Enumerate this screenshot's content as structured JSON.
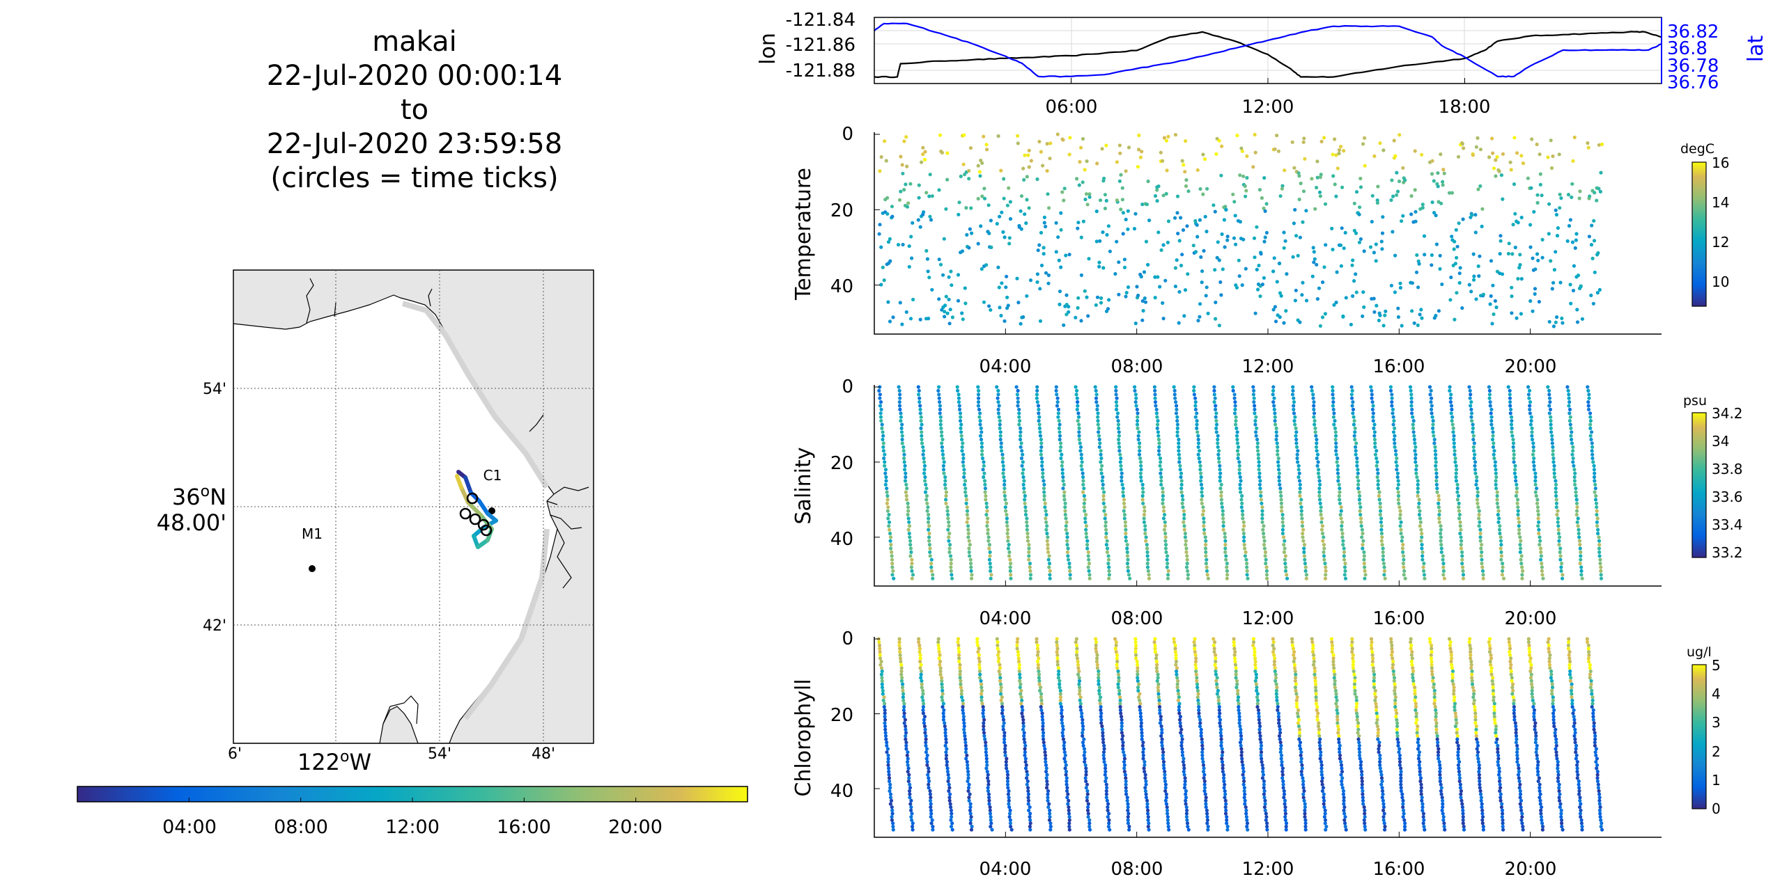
{
  "title": {
    "line1": "makai",
    "line2": "22-Jul-2020 00:00:14",
    "line3": "to",
    "line4": "22-Jul-2020 23:59:58",
    "line5": "(circles = time ticks)"
  },
  "map": {
    "lat_ticks": [
      "54'",
      "36",
      "48.00'",
      "42'"
    ],
    "lat_degree_label": {
      "deg": "36",
      "sup": "o",
      "hemi": "N"
    },
    "lon_ticks": [
      "6'",
      "54'",
      "48'"
    ],
    "lon_degree_label": {
      "deg": "122",
      "sup": "o",
      "hemi": "W"
    },
    "stations": [
      {
        "name": "M1"
      },
      {
        "name": "C1"
      }
    ],
    "colors": {
      "land": "#e6e6e6",
      "water": "#ffffff",
      "coast": "#000000"
    }
  },
  "time_colorbar": {
    "ticks": [
      "04:00",
      "08:00",
      "12:00",
      "16:00",
      "20:00"
    ],
    "colormap": "parula"
  },
  "chart_data": [
    {
      "type": "line",
      "panel": "position",
      "xlabel": "",
      "ylabel_left": "lon",
      "ylabel_right": "lat",
      "xticks": [
        "06:00",
        "12:00",
        "18:00"
      ],
      "yticks_left": [
        "-121.84",
        "-121.86",
        "-121.88"
      ],
      "yticks_right": [
        "36.82",
        "36.8",
        "36.78",
        "36.76"
      ],
      "ylim_left": [
        -121.885,
        -121.835
      ],
      "ylim_right": [
        36.755,
        36.83
      ],
      "xlim_hours": [
        0,
        24
      ],
      "grid": true,
      "series": [
        {
          "name": "lon",
          "color": "#000000",
          "x": [
            0.0,
            0.7,
            0.8,
            2.0,
            3.0,
            4.0,
            5.0,
            6.0,
            7.0,
            8.0,
            9.0,
            10.0,
            11.0,
            12.0,
            12.7,
            13.0,
            14.0,
            15.0,
            16.0,
            17.0,
            18.0,
            18.6,
            19.0,
            20.0,
            21.0,
            22.0,
            23.0,
            23.5,
            24.0
          ],
          "y": [
            -121.88,
            -121.88,
            -121.87,
            -121.868,
            -121.867,
            -121.866,
            -121.865,
            -121.864,
            -121.862,
            -121.86,
            -121.85,
            -121.846,
            -121.853,
            -121.863,
            -121.874,
            -121.88,
            -121.88,
            -121.876,
            -121.872,
            -121.869,
            -121.866,
            -121.86,
            -121.853,
            -121.849,
            -121.848,
            -121.847,
            -121.846,
            -121.846,
            -121.85
          ]
        },
        {
          "name": "lat",
          "color": "#0000ff",
          "x": [
            0.0,
            0.3,
            1.0,
            2.0,
            3.0,
            4.0,
            4.5,
            5.0,
            6.0,
            7.0,
            8.0,
            9.0,
            10.0,
            11.0,
            12.0,
            13.0,
            14.0,
            15.0,
            16.0,
            17.0,
            17.3,
            18.0,
            19.0,
            19.5,
            20.0,
            21.0,
            22.0,
            23.0,
            23.6,
            24.0
          ],
          "y": [
            36.815,
            36.823,
            36.823,
            36.812,
            36.8,
            36.786,
            36.778,
            36.763,
            36.763,
            36.765,
            36.772,
            36.778,
            36.786,
            36.795,
            36.804,
            36.813,
            36.82,
            36.82,
            36.82,
            36.808,
            36.798,
            36.785,
            36.763,
            36.763,
            36.775,
            36.793,
            36.793,
            36.793,
            36.793,
            36.8
          ]
        }
      ]
    },
    {
      "type": "scatter",
      "panel": "temperature",
      "ylabel": "Temperature",
      "xticks": [
        "04:00",
        "08:00",
        "12:00",
        "16:00",
        "20:00"
      ],
      "yticks": [
        "0",
        "20",
        "40"
      ],
      "ylim": [
        0,
        53
      ],
      "xlim_hours": [
        0,
        24
      ],
      "colorbar": {
        "label": "degC",
        "ticks": [
          "16",
          "14",
          "12",
          "10"
        ],
        "range": [
          8.8,
          16
        ]
      },
      "dive_count": 38,
      "samples_per_dive": 26
    },
    {
      "type": "scatter",
      "panel": "salinity",
      "ylabel": "Salinity",
      "xticks": [
        "04:00",
        "08:00",
        "12:00",
        "16:00",
        "20:00"
      ],
      "yticks": [
        "0",
        "20",
        "40"
      ],
      "ylim": [
        0,
        53
      ],
      "xlim_hours": [
        0,
        24
      ],
      "colorbar": {
        "label": "psu",
        "ticks": [
          "34.2",
          "34",
          "33.8",
          "33.6",
          "33.4",
          "33.2"
        ],
        "range": [
          33.15,
          34.25
        ]
      },
      "dive_count": 38,
      "samples_per_dive": 52
    },
    {
      "type": "scatter",
      "panel": "chlorophyll",
      "ylabel": "Chlorophyll",
      "xticks": [
        "04:00",
        "08:00",
        "12:00",
        "16:00",
        "20:00"
      ],
      "yticks": [
        "0",
        "20",
        "40"
      ],
      "ylim": [
        0,
        53
      ],
      "xlim_hours": [
        0,
        24
      ],
      "colorbar": {
        "label": "ug/l",
        "ticks": [
          "5",
          "4",
          "3",
          "2",
          "1",
          "0"
        ],
        "range": [
          0,
          5
        ]
      },
      "dive_count": 38,
      "samples_per_dive": 60
    }
  ]
}
